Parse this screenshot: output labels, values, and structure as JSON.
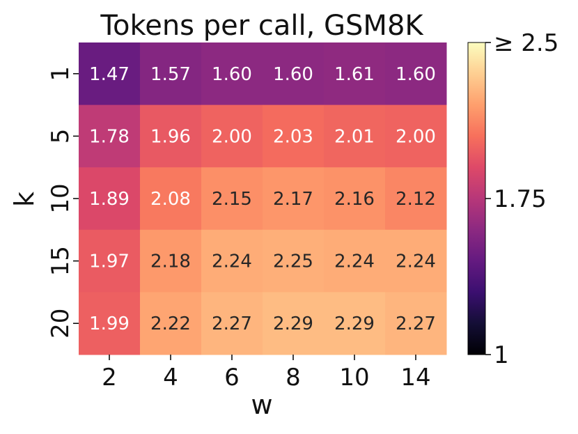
{
  "chart_data": {
    "type": "heatmap",
    "title": "Tokens per call, GSM8K",
    "xlabel": "w",
    "ylabel": "k",
    "x_categories": [
      "2",
      "4",
      "6",
      "8",
      "10",
      "14"
    ],
    "y_categories": [
      "1",
      "5",
      "10",
      "15",
      "20"
    ],
    "values": [
      [
        1.47,
        1.57,
        1.6,
        1.6,
        1.61,
        1.6
      ],
      [
        1.78,
        1.96,
        2.0,
        2.03,
        2.01,
        2.0
      ],
      [
        1.89,
        2.08,
        2.15,
        2.17,
        2.16,
        2.12
      ],
      [
        1.97,
        2.18,
        2.24,
        2.25,
        2.24,
        2.24
      ],
      [
        1.99,
        2.22,
        2.27,
        2.29,
        2.29,
        2.27
      ]
    ],
    "value_format": "2 decimals",
    "colormap": "magma",
    "vmin": 1,
    "vmax": 2.5,
    "colorbar": {
      "ticks": [
        1,
        1.75,
        2.5
      ],
      "tick_labels": [
        "1",
        "1.75",
        "≥ 2.5"
      ]
    },
    "annotation_colors": {
      "light": "#ffffff",
      "dark": "#262626"
    }
  }
}
